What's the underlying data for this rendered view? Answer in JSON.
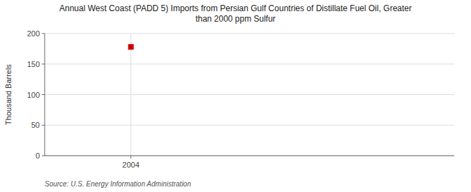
{
  "chart_data": {
    "type": "scatter",
    "title": "Annual West Coast (PADD 5) Imports from Persian Gulf Countries of Distillate Fuel Oil, Greater\nthan 2000 ppm Sulfur",
    "ylabel": "Thousand Barrels",
    "source": "Source: U.S. Energy Information Administration",
    "x": [
      2004
    ],
    "values": [
      178
    ],
    "color": "#cc0000",
    "marker": "square",
    "xlim": [
      2003.6,
      2005.5
    ],
    "xticks": [
      2004
    ],
    "ylim": [
      0,
      200
    ],
    "yticks": [
      0,
      50,
      100,
      150,
      200
    ],
    "grid": true
  }
}
